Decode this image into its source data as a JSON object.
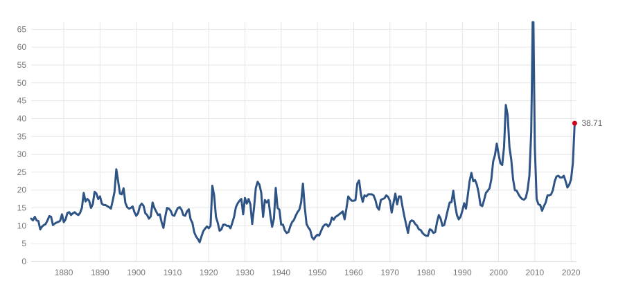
{
  "chart_data": {
    "type": "line",
    "title": "",
    "xlabel": "",
    "ylabel": "",
    "xlim": [
      1871,
      2021.5
    ],
    "ylim": [
      0,
      67
    ],
    "grid": true,
    "x_ticks": [
      1880,
      1890,
      1900,
      1910,
      1920,
      1930,
      1940,
      1950,
      1960,
      1970,
      1980,
      1990,
      2000,
      2010,
      2020
    ],
    "y_ticks": [
      0,
      5,
      10,
      15,
      20,
      25,
      30,
      35,
      40,
      45,
      50,
      55,
      60,
      65
    ],
    "colors": {
      "line": "#2e5385",
      "marker": "#d0021b"
    },
    "series": [
      {
        "x": [
          1871,
          1871.5,
          1872,
          1872.5,
          1873,
          1873.5,
          1874,
          1874.5,
          1875,
          1875.5,
          1876,
          1876.5,
          1877,
          1877.5,
          1878,
          1878.5,
          1879,
          1879.5,
          1880,
          1880.5,
          1881,
          1881.5,
          1882,
          1882.5,
          1883,
          1883.5,
          1884,
          1884.5,
          1885,
          1885.5,
          1886,
          1886.5,
          1887,
          1887.5,
          1888,
          1888.5,
          1889,
          1889.5,
          1890,
          1890.5,
          1891,
          1891.5,
          1892,
          1892.5,
          1893,
          1893.5,
          1894,
          1894.5,
          1895,
          1895.5,
          1896,
          1896.5,
          1897,
          1897.5,
          1898,
          1898.5,
          1899,
          1899.5,
          1900,
          1900.5,
          1901,
          1901.5,
          1902,
          1902.5,
          1903,
          1903.5,
          1904,
          1904.5,
          1905,
          1905.5,
          1906,
          1906.5,
          1907,
          1907.5,
          1908,
          1908.5,
          1909,
          1909.5,
          1910,
          1910.5,
          1911,
          1911.5,
          1912,
          1912.5,
          1913,
          1913.5,
          1914,
          1914.5,
          1915,
          1915.5,
          1916,
          1916.5,
          1917,
          1917.5,
          1918,
          1918.5,
          1919,
          1919.5,
          1920,
          1920.5,
          1921,
          1921.5,
          1922,
          1922.5,
          1923,
          1923.5,
          1924,
          1924.5,
          1925,
          1925.5,
          1926,
          1926.5,
          1927,
          1927.5,
          1928,
          1928.5,
          1929,
          1929.5,
          1930,
          1930.5,
          1931,
          1931.5,
          1932,
          1932.5,
          1933,
          1933.5,
          1934,
          1934.5,
          1935,
          1935.5,
          1936,
          1936.5,
          1937,
          1937.5,
          1938,
          1938.5,
          1939,
          1939.5,
          1940,
          1940.5,
          1941,
          1941.5,
          1942,
          1942.5,
          1943,
          1943.5,
          1944,
          1944.5,
          1945,
          1945.5,
          1946,
          1946.5,
          1947,
          1947.5,
          1948,
          1948.5,
          1949,
          1949.5,
          1950,
          1950.5,
          1951,
          1951.5,
          1952,
          1952.5,
          1953,
          1953.5,
          1954,
          1954.5,
          1955,
          1955.5,
          1956,
          1956.5,
          1957,
          1957.5,
          1958,
          1958.5,
          1959,
          1959.5,
          1960,
          1960.5,
          1961,
          1961.5,
          1962,
          1962.5,
          1963,
          1963.5,
          1964,
          1964.5,
          1965,
          1965.5,
          1966,
          1966.5,
          1967,
          1967.5,
          1968,
          1968.5,
          1969,
          1969.5,
          1970,
          1970.5,
          1971,
          1971.5,
          1972,
          1972.5,
          1973,
          1973.5,
          1974,
          1974.5,
          1975,
          1975.5,
          1976,
          1976.5,
          1977,
          1977.5,
          1978,
          1978.5,
          1979,
          1979.5,
          1980,
          1980.5,
          1981,
          1981.5,
          1982,
          1982.5,
          1983,
          1983.5,
          1984,
          1984.5,
          1985,
          1985.5,
          1986,
          1986.5,
          1987,
          1987.5,
          1988,
          1988.5,
          1989,
          1989.5,
          1990,
          1990.5,
          1991,
          1991.5,
          1992,
          1992.5,
          1993,
          1993.5,
          1994,
          1994.5,
          1995,
          1995.5,
          1996,
          1996.5,
          1997,
          1997.5,
          1998,
          1998.5,
          1999,
          1999.5,
          2000,
          2000.5,
          2001,
          2001.5,
          2002,
          2002.5,
          2003,
          2003.5,
          2004,
          2004.5,
          2005,
          2005.5,
          2006,
          2006.5,
          2007,
          2007.5,
          2008,
          2008.5,
          2009,
          2009.2,
          2009.4,
          2009.6,
          2009.8,
          2010,
          2010.5,
          2011,
          2011.5,
          2012,
          2012.5,
          2013,
          2013.5,
          2014,
          2014.5,
          2015,
          2015.5,
          2016,
          2016.5,
          2017,
          2017.5,
          2018,
          2018.5,
          2019,
          2019.5,
          2020,
          2020.5,
          2021
        ],
        "values": [
          12.0,
          11.5,
          12.5,
          11.5,
          11.3,
          9.0,
          9.8,
          10.2,
          10.5,
          11.5,
          12.7,
          12.5,
          10.2,
          10.6,
          10.9,
          11.1,
          11.4,
          13.2,
          11.0,
          11.8,
          13.6,
          13.8,
          13.0,
          13.5,
          13.8,
          13.3,
          13.0,
          13.6,
          15.0,
          19.2,
          16.8,
          17.5,
          17.0,
          15.0,
          16.0,
          19.5,
          19.0,
          17.5,
          18.2,
          16.2,
          15.8,
          15.8,
          15.5,
          15.2,
          14.8,
          17.0,
          19.5,
          25.8,
          22.5,
          19.0,
          18.8,
          20.5,
          16.4,
          15.2,
          14.8,
          15.0,
          15.4,
          13.8,
          12.8,
          13.5,
          15.5,
          16.2,
          15.6,
          13.5,
          13.0,
          12.0,
          12.6,
          16.5,
          15.0,
          14.0,
          13.0,
          13.2,
          11.0,
          9.4,
          12.5,
          15.0,
          14.8,
          14.2,
          13.0,
          12.8,
          14.0,
          15.0,
          15.2,
          14.5,
          13.0,
          12.8,
          14.0,
          14.6,
          11.8,
          10.8,
          8.2,
          7.0,
          6.3,
          5.4,
          7.0,
          8.5,
          9.2,
          9.8,
          9.3,
          10.0,
          21.2,
          18.5,
          12.5,
          10.8,
          8.6,
          9.0,
          10.3,
          10.3,
          10.0,
          10.0,
          9.3,
          10.8,
          12.5,
          15.2,
          16.3,
          17.0,
          17.5,
          13.2,
          17.8,
          16.2,
          17.5,
          16.0,
          10.5,
          15.0,
          20.6,
          22.3,
          21.5,
          19.2,
          12.5,
          17.2,
          16.5,
          17.2,
          13.0,
          9.7,
          12.0,
          20.6,
          15.0,
          14.5,
          10.3,
          10.3,
          8.7,
          8.0,
          8.2,
          9.8,
          11.0,
          11.6,
          12.8,
          13.8,
          14.5,
          16.5,
          21.8,
          15.2,
          10.5,
          9.5,
          8.8,
          6.8,
          6.2,
          7.0,
          7.5,
          7.3,
          8.5,
          9.7,
          10.3,
          10.4,
          9.8,
          10.5,
          12.3,
          11.7,
          12.5,
          12.8,
          13.2,
          13.6,
          14.0,
          11.8,
          14.8,
          18.2,
          17.5,
          17.0,
          17.0,
          17.2,
          21.8,
          22.7,
          18.8,
          16.7,
          18.5,
          18.2,
          18.8,
          18.8,
          18.8,
          18.5,
          17.2,
          15.2,
          14.5,
          17.2,
          17.5,
          17.7,
          18.5,
          18.1,
          17.0,
          13.7,
          16.4,
          19.0,
          16.0,
          18.2,
          18.2,
          15.2,
          12.6,
          10.3,
          8.0,
          11.0,
          11.5,
          11.3,
          10.5,
          10.0,
          9.0,
          8.8,
          8.0,
          7.5,
          7.2,
          7.2,
          9.0,
          8.8,
          8.0,
          8.2,
          11.0,
          13.0,
          12.0,
          10.0,
          10.2,
          12.3,
          14.5,
          16.5,
          16.6,
          19.8,
          15.8,
          13.0,
          11.8,
          12.5,
          14.2,
          16.3,
          14.8,
          18.5,
          22.5,
          24.8,
          22.5,
          22.8,
          21.5,
          19.2,
          15.8,
          15.5,
          17.2,
          19.2,
          19.8,
          20.5,
          23.0,
          28.0,
          29.8,
          33.0,
          30.0,
          27.5,
          27.0,
          32.0,
          43.8,
          41.0,
          32.0,
          28.5,
          23.0,
          20.0,
          19.8,
          18.8,
          18.0,
          17.5,
          17.3,
          17.8,
          20.0,
          24.0,
          36.0,
          50.0,
          67.0,
          67.0,
          50.0,
          32.0,
          17.5,
          16.0,
          15.8,
          14.2,
          15.5,
          16.5,
          18.5,
          18.5,
          18.8,
          20.0,
          22.5,
          23.8,
          24.0,
          23.5,
          23.5,
          24.0,
          22.5,
          20.7,
          21.5,
          23.0,
          27.5,
          38.71
        ]
      }
    ],
    "last_point": {
      "x": 2021,
      "value": 38.71,
      "label": "38.71"
    }
  }
}
